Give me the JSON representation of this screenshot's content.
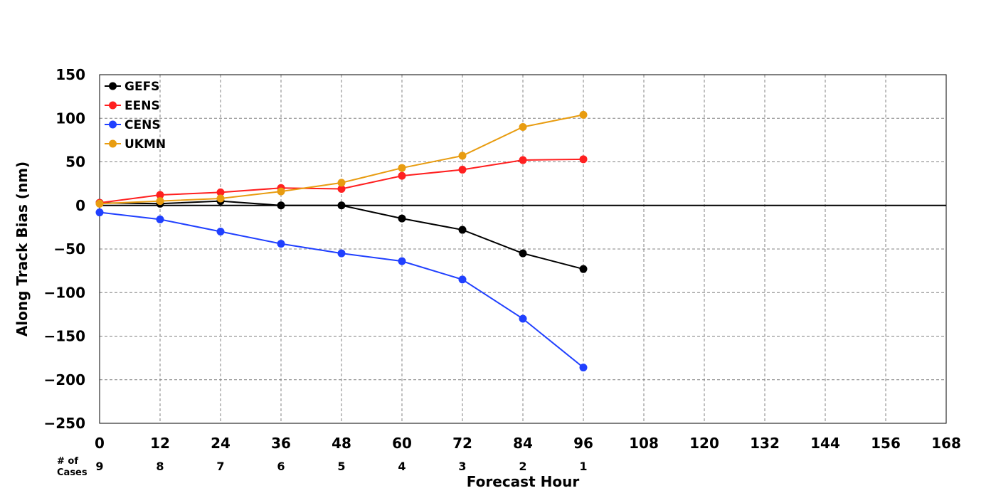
{
  "chart_data": {
    "type": "line",
    "xlabel": "Forecast Hour",
    "ylabel": "Along Track Bias (nm)",
    "xlim": [
      0,
      168
    ],
    "ylim": [
      -250,
      150
    ],
    "xticks": [
      0,
      12,
      24,
      36,
      48,
      60,
      72,
      84,
      96,
      108,
      120,
      132,
      144,
      156,
      168
    ],
    "yticks": [
      150,
      100,
      50,
      0,
      -50,
      -100,
      -150,
      -200,
      -250
    ],
    "ytick_labels": [
      "150",
      "100",
      "50",
      "0",
      "−50",
      "−100",
      "−150",
      "−200",
      "−250"
    ],
    "grid": true,
    "legend_position": "top-left",
    "x": [
      0,
      12,
      24,
      36,
      48,
      60,
      72,
      84,
      96
    ],
    "series": [
      {
        "name": "GEFS",
        "color": "#000000",
        "values": [
          3,
          2,
          5,
          0,
          0,
          -15,
          -28,
          -55,
          -73
        ]
      },
      {
        "name": "EENS",
        "color": "#ff2020",
        "values": [
          3,
          12,
          15,
          20,
          19,
          34,
          41,
          52,
          53
        ]
      },
      {
        "name": "CENS",
        "color": "#2040ff",
        "values": [
          -8,
          -16,
          -30,
          -44,
          -55,
          -64,
          -85,
          -130,
          -186
        ]
      },
      {
        "name": "UKMN",
        "color": "#e89c10",
        "values": [
          2,
          5,
          8,
          16,
          26,
          43,
          57,
          90,
          104
        ]
      }
    ],
    "cases": {
      "label_line1": "# of",
      "label_line2": "Cases",
      "hours": [
        0,
        12,
        24,
        36,
        48,
        60,
        72,
        84,
        96
      ],
      "values": [
        "9",
        "8",
        "7",
        "6",
        "5",
        "4",
        "3",
        "2",
        "1"
      ]
    }
  }
}
